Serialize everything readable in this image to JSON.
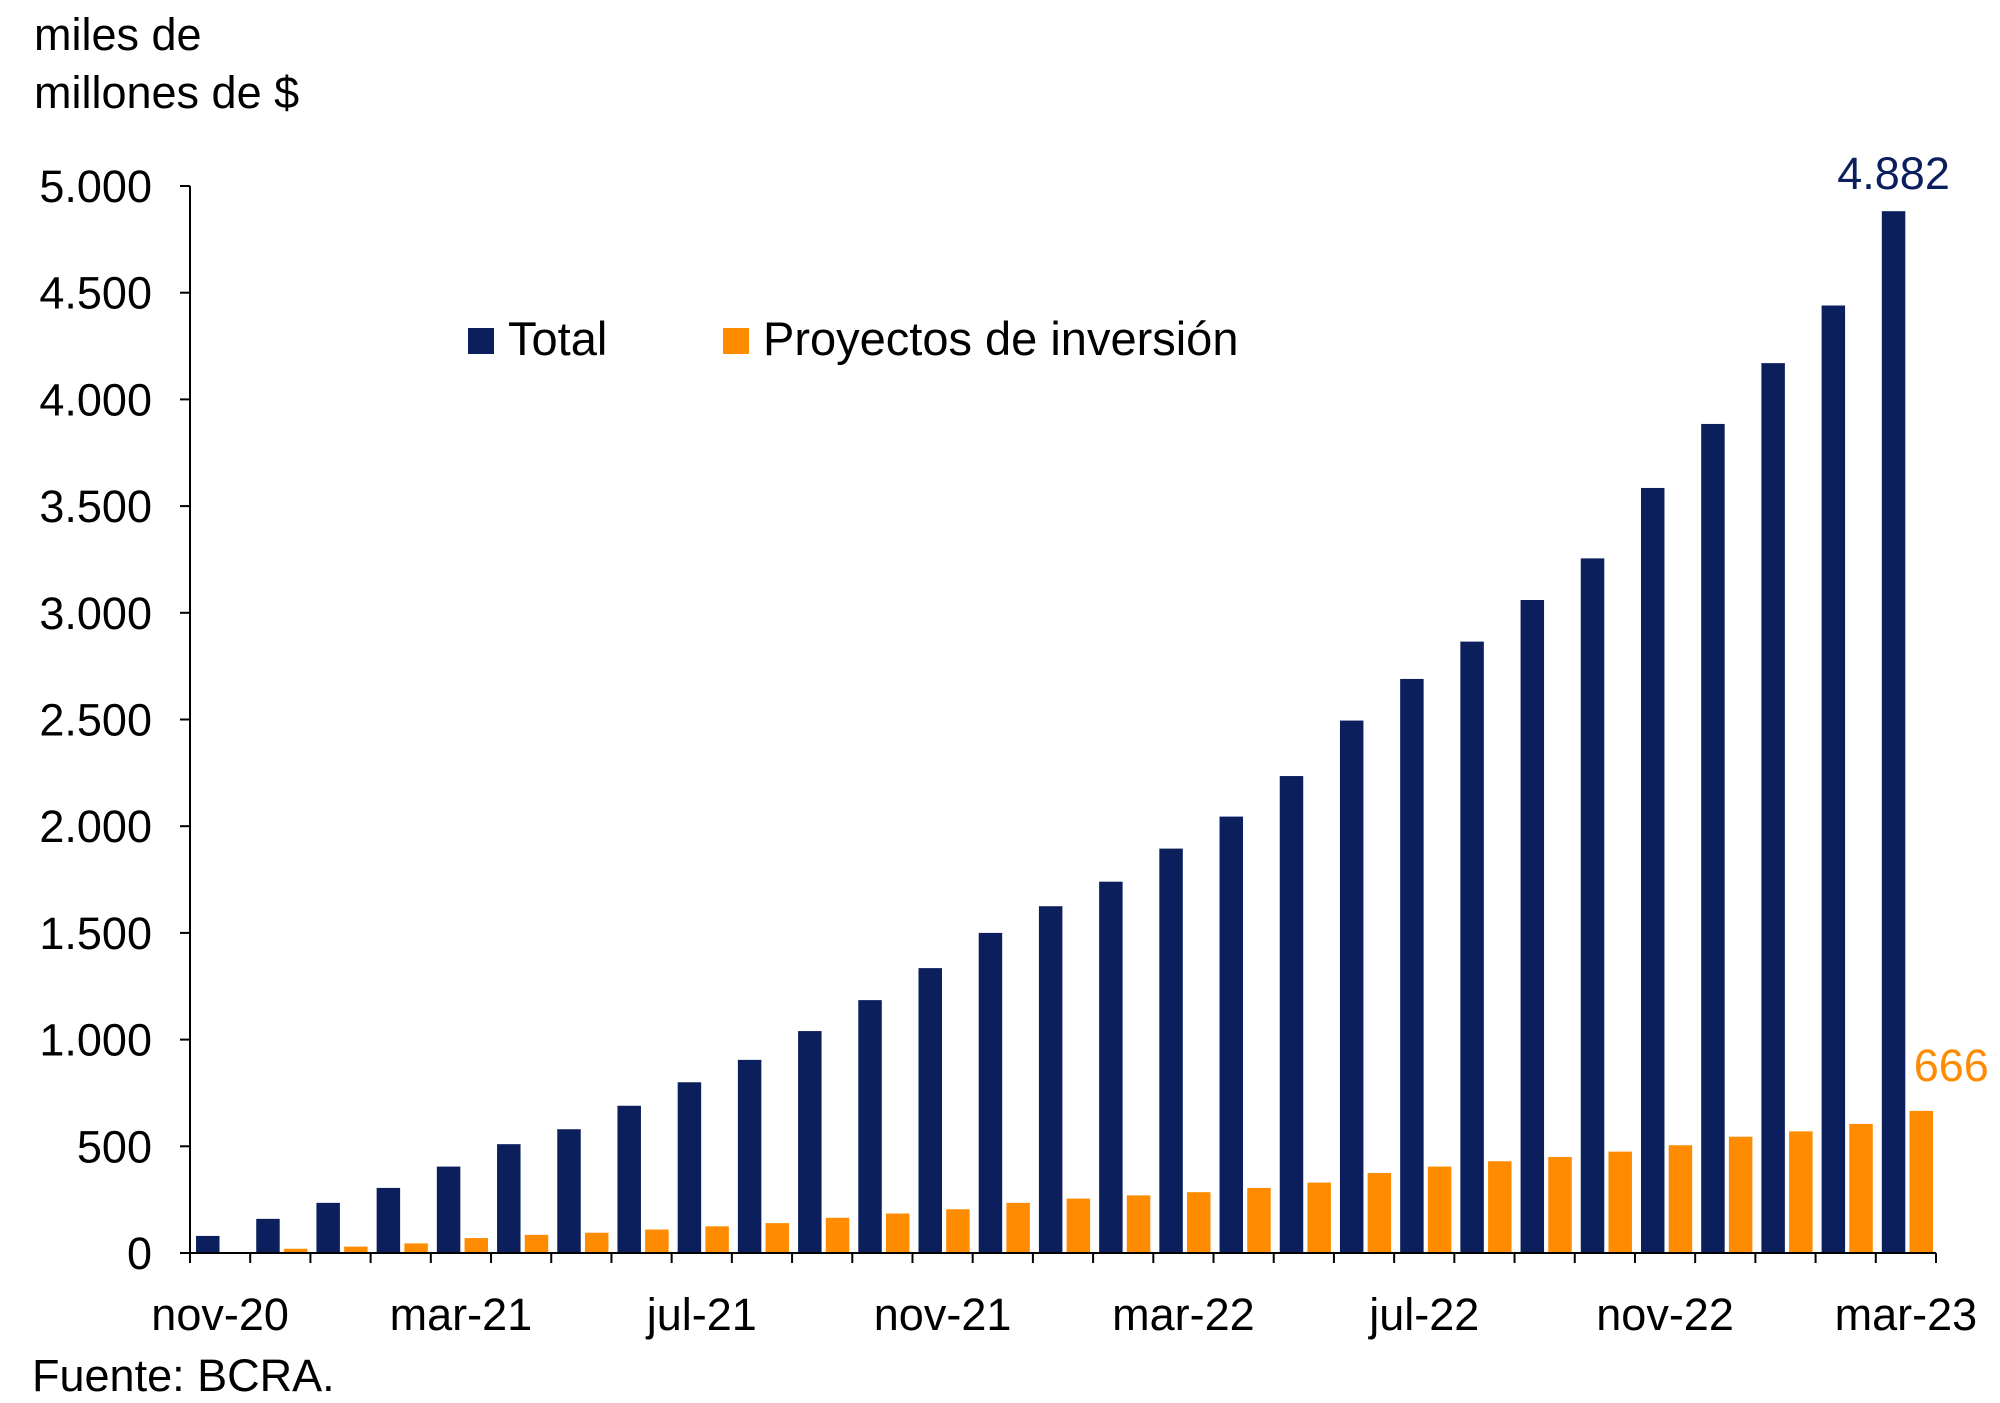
{
  "chart_data": {
    "type": "bar",
    "ylabel": "miles de millones de $",
    "ylabel_lines": [
      "miles de",
      "millones de $"
    ],
    "source": "Fuente: BCRA.",
    "ylim": [
      0,
      5000
    ],
    "yticks": [
      0,
      500,
      1000,
      1500,
      2000,
      2500,
      3000,
      3500,
      4000,
      4500,
      5000
    ],
    "ytick_labels": [
      "0",
      "500",
      "1.000",
      "1.500",
      "2.000",
      "2.500",
      "3.000",
      "3.500",
      "4.000",
      "4.500",
      "5.000"
    ],
    "categories": [
      "nov-20",
      "dic-20",
      "ene-21",
      "feb-21",
      "mar-21",
      "abr-21",
      "may-21",
      "jun-21",
      "jul-21",
      "ago-21",
      "sep-21",
      "oct-21",
      "nov-21",
      "dic-21",
      "ene-22",
      "feb-22",
      "mar-22",
      "abr-22",
      "may-22",
      "jun-22",
      "jul-22",
      "ago-22",
      "sep-22",
      "oct-22",
      "nov-22",
      "dic-22",
      "ene-23",
      "feb-23",
      "mar-23"
    ],
    "xtick_labels": [
      "nov-20",
      "mar-21",
      "jul-21",
      "nov-21",
      "mar-22",
      "jul-22",
      "nov-22",
      "mar-23"
    ],
    "legend_position": "top-center",
    "series": [
      {
        "name": "Total",
        "color": "#0b1f5c",
        "values": [
          80,
          160,
          235,
          305,
          405,
          510,
          580,
          690,
          800,
          905,
          1040,
          1185,
          1335,
          1500,
          1625,
          1740,
          1895,
          2045,
          2235,
          2495,
          2690,
          2865,
          3060,
          3255,
          3585,
          3885,
          4170,
          4440,
          4882
        ],
        "end_label": "4.882"
      },
      {
        "name": "Proyectos de inversión",
        "color": "#ff8c00",
        "values": [
          3,
          20,
          30,
          45,
          70,
          85,
          95,
          110,
          125,
          140,
          165,
          185,
          205,
          235,
          255,
          270,
          285,
          305,
          330,
          375,
          405,
          430,
          450,
          475,
          505,
          545,
          570,
          605,
          666
        ],
        "end_label": "666"
      }
    ]
  }
}
